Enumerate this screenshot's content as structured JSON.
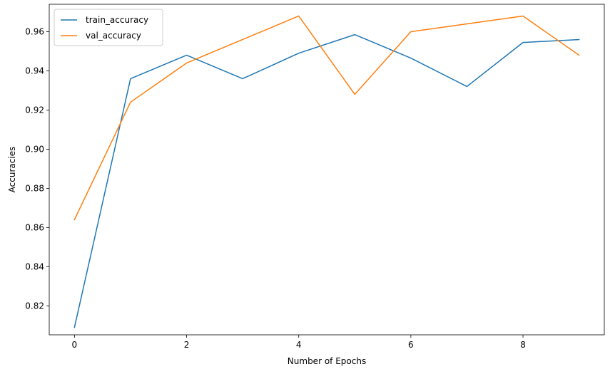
{
  "chart_data": {
    "type": "line",
    "title": "",
    "xlabel": "Number of Epochs",
    "ylabel": "Accuracies",
    "x": [
      0,
      1,
      2,
      3,
      4,
      5,
      6,
      7,
      8,
      9
    ],
    "xlim": [
      -0.45,
      9.45
    ],
    "ylim": [
      0.8052,
      0.974
    ],
    "xticks": [
      0,
      2,
      4,
      6,
      8
    ],
    "yticks": [
      0.82,
      0.84,
      0.86,
      0.88,
      0.9,
      0.92,
      0.94,
      0.96
    ],
    "grid": false,
    "legend_position": "top-left",
    "series": [
      {
        "name": "train_accuracy",
        "color": "#1f77b4",
        "values": [
          0.809,
          0.936,
          0.948,
          0.936,
          0.949,
          0.9585,
          0.9465,
          0.932,
          0.9545,
          0.956
        ]
      },
      {
        "name": "val_accuracy",
        "color": "#ff7f0e",
        "values": [
          0.864,
          0.924,
          0.944,
          0.956,
          0.968,
          0.928,
          0.96,
          0.964,
          0.968,
          0.948
        ]
      }
    ]
  }
}
